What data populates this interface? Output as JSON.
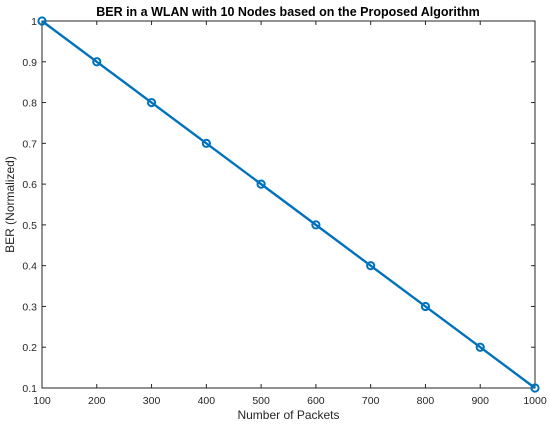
{
  "chart_data": {
    "type": "line",
    "title": "BER in a WLAN with 10 Nodes based on the Proposed Algorithm",
    "xlabel": "Number of Packets",
    "ylabel": "BER (Normalized)",
    "xlim": [
      100,
      1000
    ],
    "ylim": [
      0.1,
      1
    ],
    "xticks": [
      "100",
      "200",
      "300",
      "400",
      "500",
      "600",
      "700",
      "800",
      "900",
      "1000"
    ],
    "yticks": [
      "0.1",
      "0.2",
      "0.3",
      "0.4",
      "0.5",
      "0.6",
      "0.7",
      "0.8",
      "0.9",
      "1"
    ],
    "grid": false,
    "series": [
      {
        "x": [
          100,
          200,
          300,
          400,
          500,
          600,
          700,
          800,
          900,
          1000
        ],
        "y": [
          1,
          0.9,
          0.8,
          0.7,
          0.6,
          0.5,
          0.4,
          0.3,
          0.2,
          0.1
        ],
        "color": "#0072BD",
        "marker": "circle"
      }
    ]
  }
}
